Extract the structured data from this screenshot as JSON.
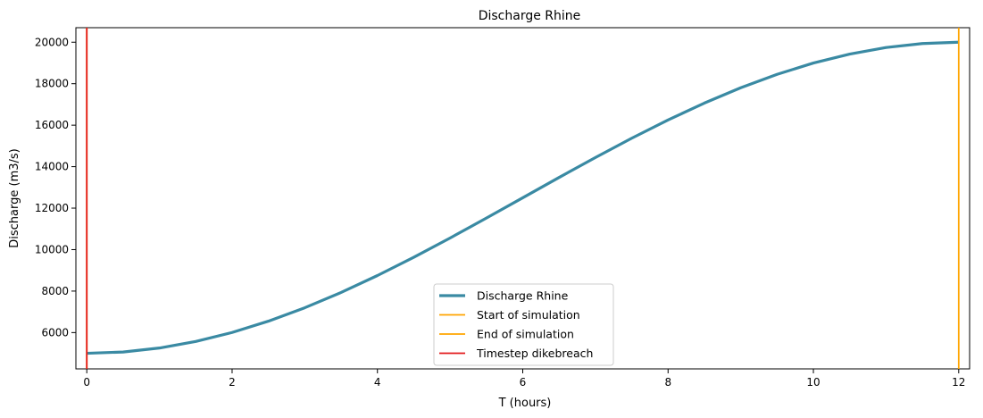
{
  "chart_data": {
    "type": "line",
    "title": "Discharge Rhine",
    "xlabel": "T (hours)",
    "ylabel": "Discharge (m3/s)",
    "xlim": [
      -0.15,
      12.15
    ],
    "ylim": [
      4250,
      20700
    ],
    "xticks": [
      0,
      2,
      4,
      6,
      8,
      10,
      12
    ],
    "yticks": [
      6000,
      8000,
      10000,
      12000,
      14000,
      16000,
      18000,
      20000
    ],
    "grid": false,
    "legend_position": "bottom-center",
    "series": [
      {
        "name": "Discharge Rhine",
        "color": "#3a8aa3",
        "x": [
          0,
          0.5,
          1,
          1.5,
          2,
          2.5,
          3,
          3.5,
          4,
          4.5,
          5,
          5.5,
          6,
          6.5,
          7,
          7.5,
          8,
          8.5,
          9,
          9.5,
          10,
          10.5,
          11,
          11.5,
          12
        ],
        "y": [
          5000,
          5064,
          5256,
          5572,
          6005,
          6550,
          7197,
          7934,
          8750,
          9629,
          10559,
          11521,
          12500,
          13479,
          14441,
          15371,
          16250,
          17066,
          17803,
          18450,
          18995,
          19428,
          19744,
          19936,
          20000
        ]
      }
    ],
    "vlines": [
      {
        "name": "Start of simulation",
        "x": 0,
        "color": "#ffa500"
      },
      {
        "name": "End of simulation",
        "x": 12,
        "color": "#ffa500"
      },
      {
        "name": "Timestep dikebreach",
        "x": 0,
        "color": "#e31a1c"
      }
    ]
  }
}
